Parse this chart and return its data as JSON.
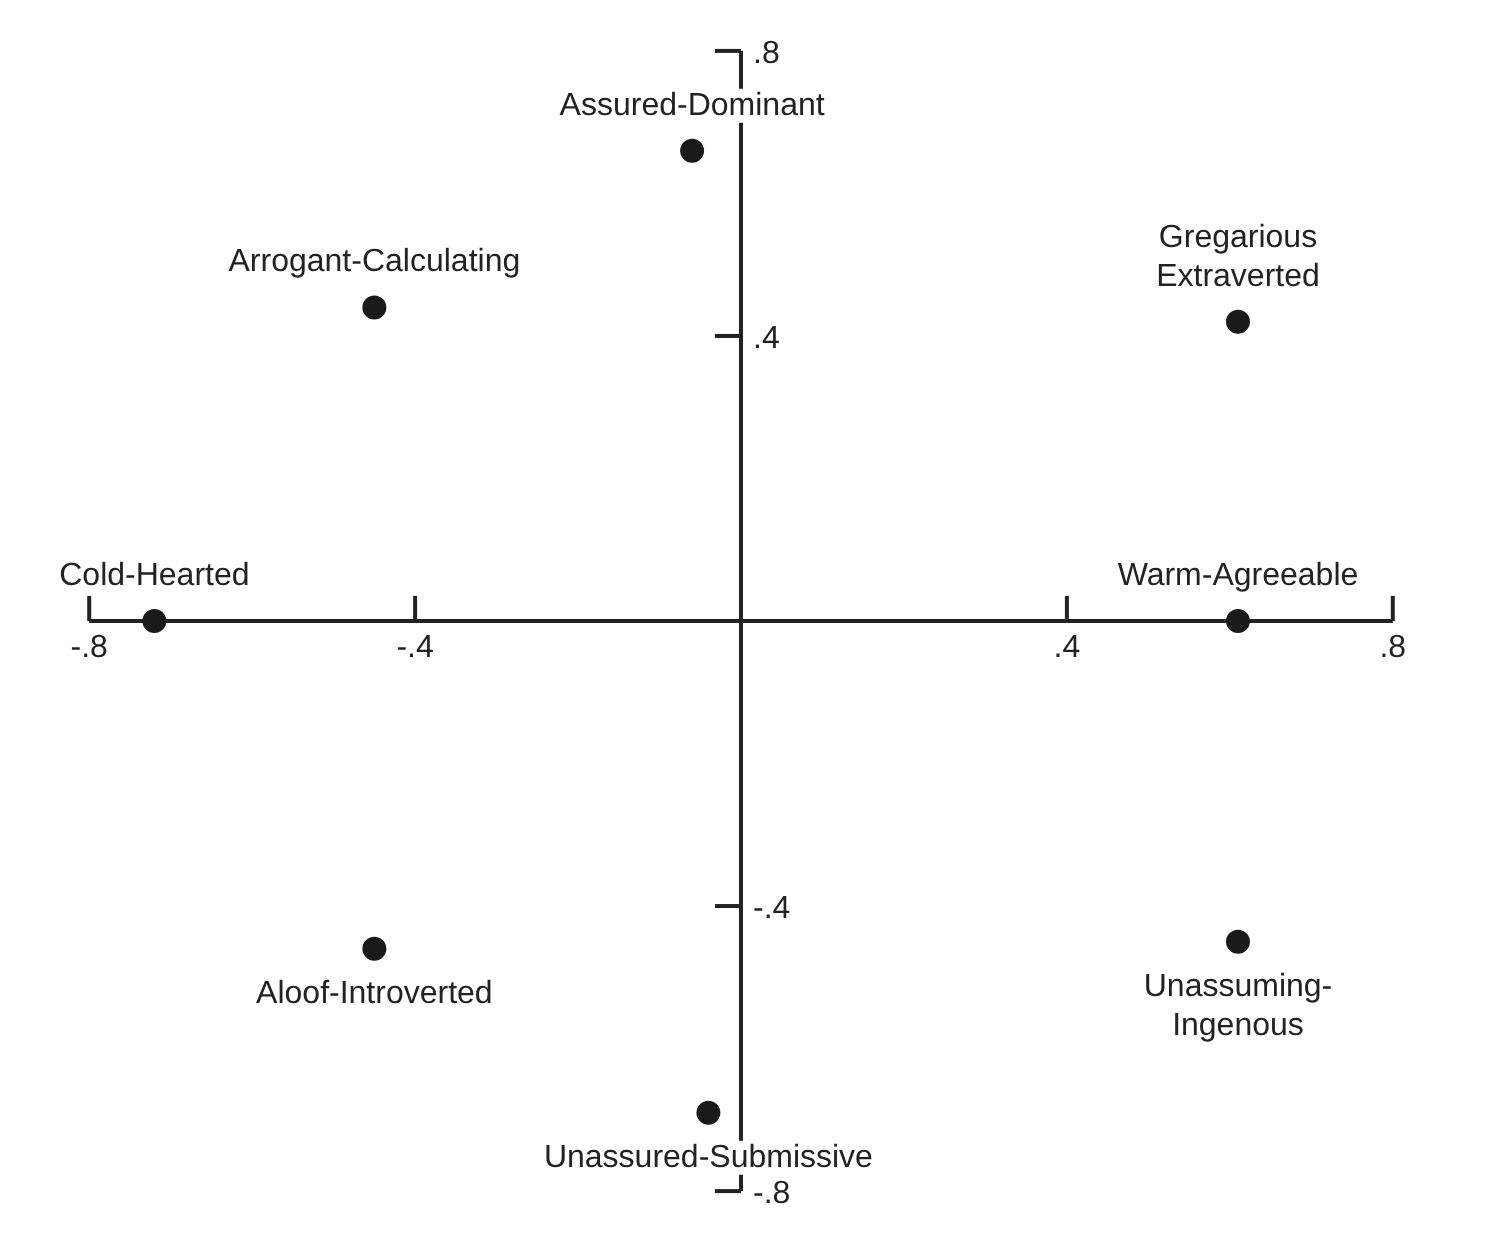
{
  "chart_data": {
    "type": "scatter",
    "marker": "circle",
    "legend": false,
    "grid": false,
    "xlim": [
      -0.8,
      0.8
    ],
    "ylim": [
      -0.8,
      0.8
    ],
    "xticks": [
      {
        "value": -0.8,
        "label": "-.8"
      },
      {
        "value": -0.4,
        "label": "-.4"
      },
      {
        "value": 0.4,
        "label": ".4"
      },
      {
        "value": 0.8,
        "label": ".8"
      }
    ],
    "yticks": [
      {
        "value": -0.8,
        "label": "-.8"
      },
      {
        "value": -0.4,
        "label": "-.4"
      },
      {
        "value": 0.4,
        "label": ".4"
      },
      {
        "value": 0.8,
        "label": ".8"
      }
    ],
    "series": [
      {
        "name": "Assured-Dominant",
        "color": "#1a1a1a",
        "x": [
          -0.06
        ],
        "values": [
          0.66
        ]
      },
      {
        "name": "Arrogant-Calculating",
        "color": "#1a1a1a",
        "x": [
          -0.45
        ],
        "values": [
          0.44
        ]
      },
      {
        "name": "Gregarious\nExtraverted",
        "color": "#1a1a1a",
        "x": [
          0.61
        ],
        "values": [
          0.42
        ]
      },
      {
        "name": "Cold-Hearted",
        "color": "#1a1a1a",
        "x": [
          -0.72
        ],
        "values": [
          0
        ]
      },
      {
        "name": "Warm-Agreeable",
        "color": "#1a1a1a",
        "x": [
          0.61
        ],
        "values": [
          0
        ]
      },
      {
        "name": "Aloof-Introverted",
        "color": "#1a1a1a",
        "x": [
          -0.45
        ],
        "values": [
          -0.46
        ]
      },
      {
        "name": "Unassuming-\nIngenous",
        "color": "#1a1a1a",
        "x": [
          0.61
        ],
        "values": [
          -0.45
        ]
      },
      {
        "name": "Unassured-Submissive",
        "color": "#1a1a1a",
        "x": [
          -0.04
        ],
        "values": [
          -0.69
        ]
      }
    ]
  }
}
